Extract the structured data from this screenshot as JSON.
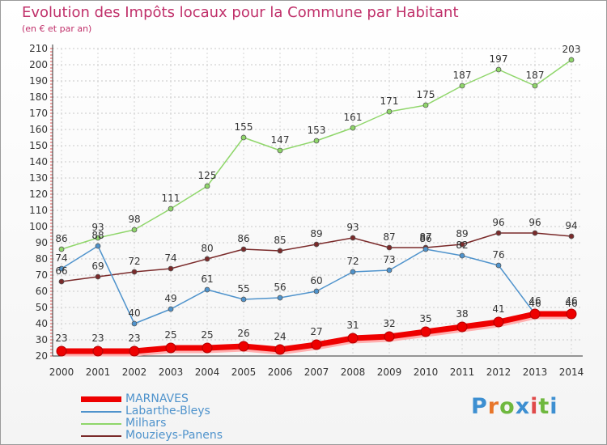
{
  "title": "Evolution des Impôts locaux pour la Commune par Habitant",
  "subtitle": "(en € et par an)",
  "logo": {
    "text": "Proxiti",
    "colors": [
      "#3d8fd1",
      "#e8762a",
      "#6fb83f",
      "#3d8fd1",
      "#e04a4a",
      "#6fb83f",
      "#3d8fd1"
    ]
  },
  "chart_data": {
    "type": "line",
    "x": [
      "2000",
      "2001",
      "2002",
      "2003",
      "2004",
      "2005",
      "2006",
      "2007",
      "2008",
      "2009",
      "2010",
      "2011",
      "2012",
      "2013",
      "2014"
    ],
    "ylim": [
      20,
      210
    ],
    "yticks": [
      20,
      30,
      40,
      50,
      60,
      70,
      80,
      90,
      100,
      110,
      120,
      130,
      140,
      150,
      160,
      170,
      180,
      190,
      200,
      210
    ],
    "grid": true,
    "legend_position": "bottom-left",
    "series": [
      {
        "name": "MARNAVES",
        "color": "#ee0000",
        "values": [
          23,
          23,
          23,
          25,
          25,
          26,
          24,
          27,
          31,
          32,
          35,
          38,
          41,
          46,
          46
        ]
      },
      {
        "name": "Labarthe-Bleys",
        "color": "#4f93cc",
        "values": [
          74,
          88,
          40,
          49,
          61,
          55,
          56,
          60,
          72,
          73,
          86,
          82,
          76,
          46,
          46
        ]
      },
      {
        "name": "Milhars",
        "color": "#8fd66a",
        "values": [
          86,
          93,
          98,
          111,
          125,
          155,
          147,
          153,
          161,
          171,
          175,
          187,
          197,
          187,
          203
        ]
      },
      {
        "name": "Mouzieys-Panens",
        "color": "#7a2a2a",
        "values": [
          66,
          69,
          72,
          74,
          80,
          86,
          85,
          89,
          93,
          87,
          87,
          89,
          96,
          96,
          94
        ]
      }
    ]
  }
}
